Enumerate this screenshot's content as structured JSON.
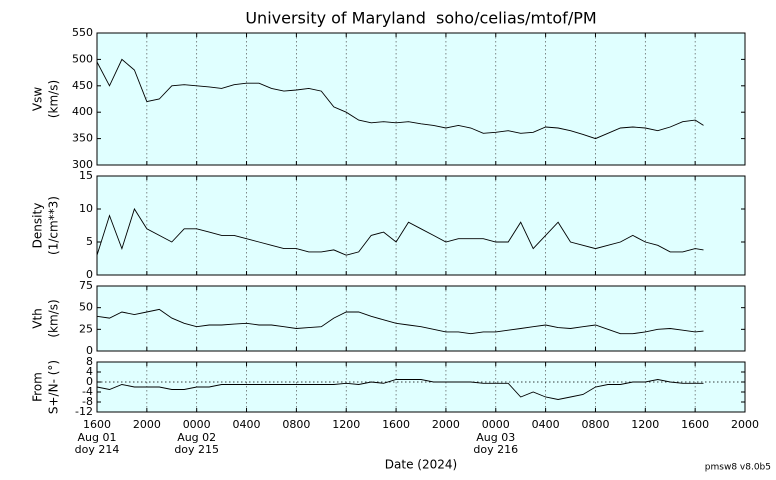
{
  "chart_data": {
    "type": "line",
    "title": "University of Maryland  soho/celias/mtof/PM",
    "xlabel": "Date (2024)",
    "annotation": "pmsw8 v8.0b5",
    "background": "#e0ffff",
    "grid": true,
    "x": [
      "2024-08-01T16:00",
      "2024-08-01T17:00",
      "2024-08-01T18:00",
      "2024-08-01T19:00",
      "2024-08-01T20:00",
      "2024-08-01T21:00",
      "2024-08-01T22:00",
      "2024-08-01T23:00",
      "2024-08-02T00:00",
      "2024-08-02T01:00",
      "2024-08-02T02:00",
      "2024-08-02T03:00",
      "2024-08-02T04:00",
      "2024-08-02T05:00",
      "2024-08-02T06:00",
      "2024-08-02T07:00",
      "2024-08-02T08:00",
      "2024-08-02T09:00",
      "2024-08-02T10:00",
      "2024-08-02T11:00",
      "2024-08-02T12:00",
      "2024-08-02T13:00",
      "2024-08-02T14:00",
      "2024-08-02T15:00",
      "2024-08-02T16:00",
      "2024-08-02T17:00",
      "2024-08-02T18:00",
      "2024-08-02T19:00",
      "2024-08-02T20:00",
      "2024-08-02T21:00",
      "2024-08-02T22:00",
      "2024-08-02T23:00",
      "2024-08-03T00:00",
      "2024-08-03T01:00",
      "2024-08-03T02:00",
      "2024-08-03T03:00",
      "2024-08-03T04:00",
      "2024-08-03T05:00",
      "2024-08-03T06:00",
      "2024-08-03T07:00",
      "2024-08-03T08:00",
      "2024-08-03T09:00",
      "2024-08-03T10:00",
      "2024-08-03T11:00",
      "2024-08-03T12:00",
      "2024-08-03T13:00",
      "2024-08-03T14:00",
      "2024-08-03T15:00",
      "2024-08-03T16:00",
      "2024-08-03T16:40"
    ],
    "xlim": [
      "2024-08-01T16:00",
      "2024-08-03T20:00"
    ],
    "xticks": [
      {
        "value": "2024-08-01T16:00",
        "label": "1600"
      },
      {
        "value": "2024-08-01T20:00",
        "label": "2000"
      },
      {
        "value": "2024-08-02T00:00",
        "label": "0000"
      },
      {
        "value": "2024-08-02T04:00",
        "label": "0400"
      },
      {
        "value": "2024-08-02T08:00",
        "label": "0800"
      },
      {
        "value": "2024-08-02T12:00",
        "label": "1200"
      },
      {
        "value": "2024-08-02T16:00",
        "label": "1600"
      },
      {
        "value": "2024-08-02T20:00",
        "label": "2000"
      },
      {
        "value": "2024-08-03T00:00",
        "label": "0000"
      },
      {
        "value": "2024-08-03T04:00",
        "label": "0400"
      },
      {
        "value": "2024-08-03T08:00",
        "label": "0800"
      },
      {
        "value": "2024-08-03T12:00",
        "label": "1200"
      },
      {
        "value": "2024-08-03T16:00",
        "label": "1600"
      },
      {
        "value": "2024-08-03T20:00",
        "label": "2000"
      }
    ],
    "date_labels": [
      {
        "value": "2024-08-01T16:00",
        "label": "Aug 01",
        "doy": "doy 214"
      },
      {
        "value": "2024-08-02T00:00",
        "label": "Aug 02",
        "doy": "doy 215"
      },
      {
        "value": "2024-08-03T00:00",
        "label": "Aug 03",
        "doy": "doy 216"
      }
    ],
    "panels": [
      {
        "ylabel": [
          "Vsw",
          "(km/s)"
        ],
        "ylim": [
          300,
          550
        ],
        "yticks": [
          300,
          350,
          400,
          450,
          500,
          550
        ],
        "color": "#000000",
        "values": [
          495,
          450,
          500,
          480,
          420,
          425,
          450,
          452,
          450,
          448,
          445,
          452,
          455,
          455,
          445,
          440,
          442,
          445,
          440,
          410,
          400,
          385,
          380,
          382,
          380,
          382,
          378,
          375,
          370,
          375,
          370,
          360,
          362,
          365,
          360,
          362,
          372,
          370,
          365,
          358,
          350,
          360,
          370,
          372,
          370,
          365,
          372,
          382,
          385,
          375
        ]
      },
      {
        "ylabel": [
          "Density",
          "(1/cm**3)"
        ],
        "ylim": [
          0,
          15
        ],
        "yticks": [
          0,
          5,
          10,
          15
        ],
        "color": "#000000",
        "values": [
          3,
          9,
          4,
          10,
          7,
          6,
          5,
          7,
          7,
          6.5,
          6,
          6,
          5.5,
          5,
          4.5,
          4,
          4,
          3.5,
          3.5,
          3.8,
          3,
          3.5,
          6,
          6.5,
          5,
          8,
          7,
          6,
          5,
          5.5,
          5.5,
          5.5,
          5,
          5,
          8,
          4,
          6,
          8,
          5,
          4.5,
          4,
          4.5,
          5,
          6,
          5,
          4.5,
          3.5,
          3.5,
          4,
          3.8
        ]
      },
      {
        "ylabel": [
          "Vth",
          "(km/s)"
        ],
        "ylim": [
          0,
          75
        ],
        "yticks": [
          0,
          25,
          50,
          75
        ],
        "color": "#000000",
        "values": [
          40,
          38,
          45,
          42,
          45,
          48,
          38,
          32,
          28,
          30,
          30,
          31,
          32,
          30,
          30,
          28,
          26,
          27,
          28,
          38,
          45,
          45,
          40,
          36,
          32,
          30,
          28,
          25,
          22,
          22,
          20,
          22,
          22,
          24,
          26,
          28,
          30,
          27,
          26,
          28,
          30,
          25,
          20,
          20,
          22,
          25,
          26,
          24,
          22,
          23
        ]
      },
      {
        "ylabel": [
          "From",
          "S+/N- (°)"
        ],
        "ylim": [
          -12,
          8
        ],
        "yticks": [
          -12,
          -8,
          -4,
          0,
          4,
          8
        ],
        "hline": 0,
        "color": "#000000",
        "values": [
          -2,
          -3,
          -1,
          -2,
          -2,
          -2,
          -3,
          -3,
          -2,
          -2,
          -1,
          -1,
          -1,
          -1,
          -1,
          -1,
          -1,
          -1,
          -1,
          -1,
          -0.5,
          -1,
          0,
          -0.5,
          1,
          1,
          1,
          0,
          0,
          0,
          0,
          -0.5,
          -0.5,
          -0.5,
          -6,
          -4,
          -6,
          -7,
          -6,
          -5,
          -2,
          -1,
          -1,
          0,
          0,
          1,
          0,
          -0.5,
          -0.5,
          -0.5
        ]
      }
    ]
  }
}
